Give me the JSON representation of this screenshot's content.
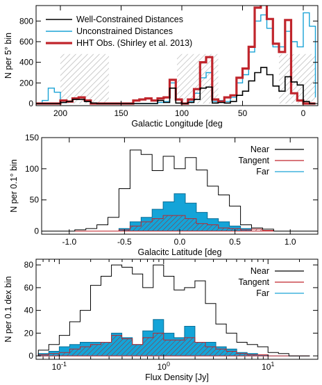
{
  "colors": {
    "black": "#000000",
    "cyan": "#1aa3d6",
    "red": "#c0252c",
    "fill": "#14a4d8",
    "hatch": "#c8c8c8",
    "hatchRed": "#d84040"
  },
  "chart_data": [
    {
      "type": "histogram",
      "xlabel": "Galactic Longitude  [deg",
      "ylabel": "N per 5° bin",
      "xlim": [
        220,
        -12
      ],
      "ylim": [
        -20,
        950
      ],
      "xticks": [
        {
          "v": 200,
          "label": "200"
        },
        {
          "v": 150,
          "label": "150"
        },
        {
          "v": 100,
          "label": "100"
        },
        {
          "v": 50,
          "label": "50"
        },
        {
          "v": 0,
          "label": "0"
        }
      ],
      "yticks": [
        {
          "v": 0,
          "label": "0"
        },
        {
          "v": 200,
          "label": "200"
        },
        {
          "v": 400,
          "label": "400"
        },
        {
          "v": 600,
          "label": "600"
        },
        {
          "v": 800,
          "label": "800"
        }
      ],
      "legend": {
        "position": "top-left",
        "entries": [
          {
            "label": "Well-Constrained Distances",
            "color": "#000000"
          },
          {
            "label": "Unconstrained Distances",
            "color": "#1aa3d6"
          },
          {
            "label": "HHT Obs. (Shirley et al. 2013)",
            "color": "#c0252c"
          }
        ]
      },
      "shaded_regions": [
        [
          200,
          160
        ],
        [
          104,
          70
        ],
        [
          20,
          -10
        ]
      ],
      "bin_edges": [
        220,
        215,
        210,
        205,
        200,
        195,
        190,
        185,
        180,
        175,
        170,
        165,
        160,
        155,
        150,
        145,
        140,
        135,
        130,
        125,
        120,
        115,
        110,
        105,
        100,
        95,
        90,
        85,
        80,
        75,
        70,
        65,
        60,
        55,
        50,
        45,
        40,
        35,
        30,
        25,
        20,
        15,
        10,
        5,
        0,
        -5,
        -10
      ],
      "series": [
        {
          "name": "Well-Constrained Distances",
          "values": [
            0,
            0,
            0,
            0,
            10,
            20,
            40,
            40,
            20,
            5,
            0,
            0,
            0,
            0,
            0,
            0,
            0,
            0,
            0,
            0,
            30,
            10,
            150,
            5,
            0,
            10,
            40,
            150,
            160,
            5,
            10,
            5,
            20,
            80,
            120,
            220,
            300,
            350,
            280,
            170,
            120,
            260,
            210,
            180,
            20,
            0,
            0
          ]
        },
        {
          "name": "Unconstrained Distances",
          "values": [
            0,
            30,
            150,
            110,
            10,
            20,
            50,
            60,
            20,
            0,
            0,
            0,
            0,
            0,
            0,
            0,
            0,
            0,
            0,
            0,
            10,
            20,
            200,
            40,
            0,
            20,
            100,
            250,
            300,
            20,
            30,
            20,
            60,
            200,
            280,
            500,
            800,
            860,
            730,
            550,
            550,
            700,
            600,
            550,
            880,
            750,
            60
          ]
        },
        {
          "name": "HHT Obs. (Shirley et al. 2013)",
          "values": [
            0,
            0,
            0,
            0,
            30,
            20,
            50,
            60,
            30,
            0,
            0,
            0,
            0,
            0,
            0,
            0,
            30,
            40,
            50,
            30,
            50,
            60,
            230,
            40,
            0,
            40,
            140,
            400,
            450,
            40,
            20,
            60,
            80,
            250,
            340,
            550,
            930,
            1000,
            820,
            580,
            500,
            810,
            100,
            30,
            0,
            0,
            0
          ]
        }
      ]
    },
    {
      "type": "histogram",
      "xlabel": "Galacitc Latitude  [deg",
      "ylabel": "N per 0.1° bin",
      "xlim": [
        -1.25,
        1.25
      ],
      "ylim": [
        -5,
        150
      ],
      "xticks": [
        {
          "v": -1,
          "label": "-1.0"
        },
        {
          "v": -0.5,
          "label": "-0.5"
        },
        {
          "v": 0,
          "label": "0.0"
        },
        {
          "v": 0.5,
          "label": "0.5"
        },
        {
          "v": 1,
          "label": "1.0"
        }
      ],
      "yticks": [
        {
          "v": 0,
          "label": "0"
        },
        {
          "v": 50,
          "label": "50"
        },
        {
          "v": 100,
          "label": "100"
        },
        {
          "v": 150,
          "label": "150"
        }
      ],
      "legend": {
        "position": "top-right",
        "entries": [
          {
            "label": "Near",
            "color": "#000000"
          },
          {
            "label": "Tangent",
            "color": "#c0252c"
          },
          {
            "label": "Far",
            "color": "#1aa3d6"
          }
        ]
      },
      "bin_edges": [
        -1.25,
        -1.15,
        -1.05,
        -0.95,
        -0.85,
        -0.75,
        -0.65,
        -0.55,
        -0.45,
        -0.35,
        -0.25,
        -0.15,
        -0.05,
        0.05,
        0.15,
        0.25,
        0.35,
        0.45,
        0.55,
        0.65,
        0.75,
        0.85,
        0.95,
        1.05,
        1.15,
        1.25
      ],
      "series": [
        {
          "name": "Near",
          "values": [
            0,
            0,
            0,
            2,
            4,
            10,
            22,
            68,
            130,
            123,
            97,
            120,
            100,
            118,
            98,
            72,
            58,
            40,
            10,
            5,
            3,
            0,
            0,
            0,
            0
          ]
        },
        {
          "name": "Tangent",
          "values": [
            0,
            0,
            0,
            0,
            0,
            0,
            0,
            2,
            8,
            15,
            20,
            25,
            25,
            20,
            12,
            10,
            5,
            4,
            2,
            3,
            1,
            0,
            0,
            0,
            0
          ]
        },
        {
          "name": "Far",
          "values": [
            0,
            0,
            0,
            0,
            0,
            0,
            0,
            4,
            15,
            22,
            35,
            47,
            60,
            45,
            30,
            20,
            15,
            8,
            4,
            0,
            0,
            0,
            0,
            0,
            0
          ]
        }
      ]
    },
    {
      "type": "histogram",
      "xlabel": "Flux Density  [Jy]",
      "ylabel": "N per 0.1 dex bin",
      "xscale": "log",
      "xlim": [
        0.06,
        30
      ],
      "ylim": [
        -3,
        85
      ],
      "xticks": [
        {
          "v": 0.1,
          "label": "10",
          "exp": "-1"
        },
        {
          "v": 1,
          "label": "10",
          "exp": "0"
        },
        {
          "v": 10,
          "label": "10",
          "exp": "1"
        }
      ],
      "yticks": [
        {
          "v": 0,
          "label": "0"
        },
        {
          "v": 20,
          "label": "20"
        },
        {
          "v": 40,
          "label": "40"
        },
        {
          "v": 60,
          "label": "60"
        },
        {
          "v": 80,
          "label": "80"
        }
      ],
      "legend": {
        "position": "top-right",
        "entries": [
          {
            "label": "Near",
            "color": "#000000"
          },
          {
            "label": "Tangent",
            "color": "#c0252c"
          },
          {
            "label": "Far",
            "color": "#1aa3d6"
          }
        ]
      },
      "bin_edges_log": [
        -1.2,
        -1.1,
        -1.0,
        -0.9,
        -0.8,
        -0.7,
        -0.6,
        -0.5,
        -0.4,
        -0.3,
        -0.2,
        -0.1,
        0.0,
        0.1,
        0.2,
        0.3,
        0.4,
        0.5,
        0.6,
        0.7,
        0.8,
        0.9,
        1.0,
        1.1,
        1.2,
        1.3,
        1.4
      ],
      "series": [
        {
          "name": "Near",
          "values": [
            5,
            10,
            18,
            30,
            40,
            62,
            70,
            80,
            78,
            72,
            60,
            80,
            70,
            58,
            60,
            66,
            46,
            28,
            20,
            12,
            10,
            8,
            3,
            2,
            0,
            0
          ]
        },
        {
          "name": "Tangent",
          "values": [
            1,
            2,
            3,
            6,
            8,
            10,
            12,
            18,
            15,
            10,
            16,
            20,
            14,
            14,
            16,
            12,
            8,
            6,
            4,
            2,
            1,
            1,
            0,
            0,
            0,
            0
          ]
        },
        {
          "name": "Far",
          "values": [
            2,
            4,
            8,
            10,
            12,
            12,
            12,
            20,
            16,
            10,
            22,
            32,
            20,
            16,
            26,
            12,
            12,
            8,
            6,
            3,
            2,
            1,
            0,
            0,
            0,
            0
          ]
        }
      ]
    }
  ]
}
